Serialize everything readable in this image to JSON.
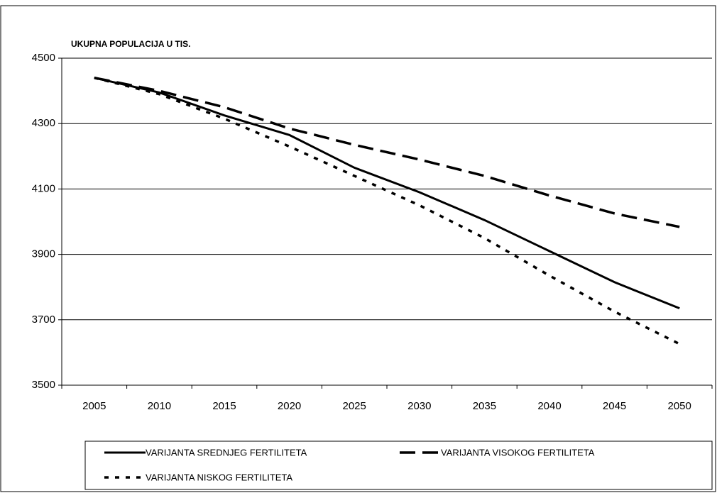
{
  "chart_data": {
    "type": "line",
    "ylabel": "UKUPNA POPULACIJA U TIS.",
    "categories": [
      "2005",
      "2010",
      "2015",
      "2020",
      "2025",
      "2030",
      "2035",
      "2040",
      "2045",
      "2050"
    ],
    "series": [
      {
        "name": "VARIJANTA SREDNJEG FERTILITETA",
        "color": "#000000",
        "style": "solid",
        "values": [
          4440,
          4395,
          4325,
          4265,
          4165,
          4090,
          4005,
          3910,
          3815,
          3735
        ]
      },
      {
        "name": "VARIJANTA VISOKOG FERTILITETA",
        "color": "#000000",
        "style": "dashed",
        "values": [
          4440,
          4400,
          4350,
          4285,
          4235,
          4190,
          4140,
          4080,
          4025,
          3984
        ]
      },
      {
        "name": "VARIJANTA NISKOG FERTILITETA",
        "color": "#000000",
        "style": "dotted",
        "values": [
          4440,
          4390,
          4315,
          4230,
          4140,
          4050,
          3950,
          3835,
          3725,
          3626
        ]
      }
    ],
    "ylim": [
      3500,
      4500
    ],
    "yticks": [
      3500,
      3700,
      3900,
      4100,
      4300,
      4500
    ],
    "grid": true
  }
}
